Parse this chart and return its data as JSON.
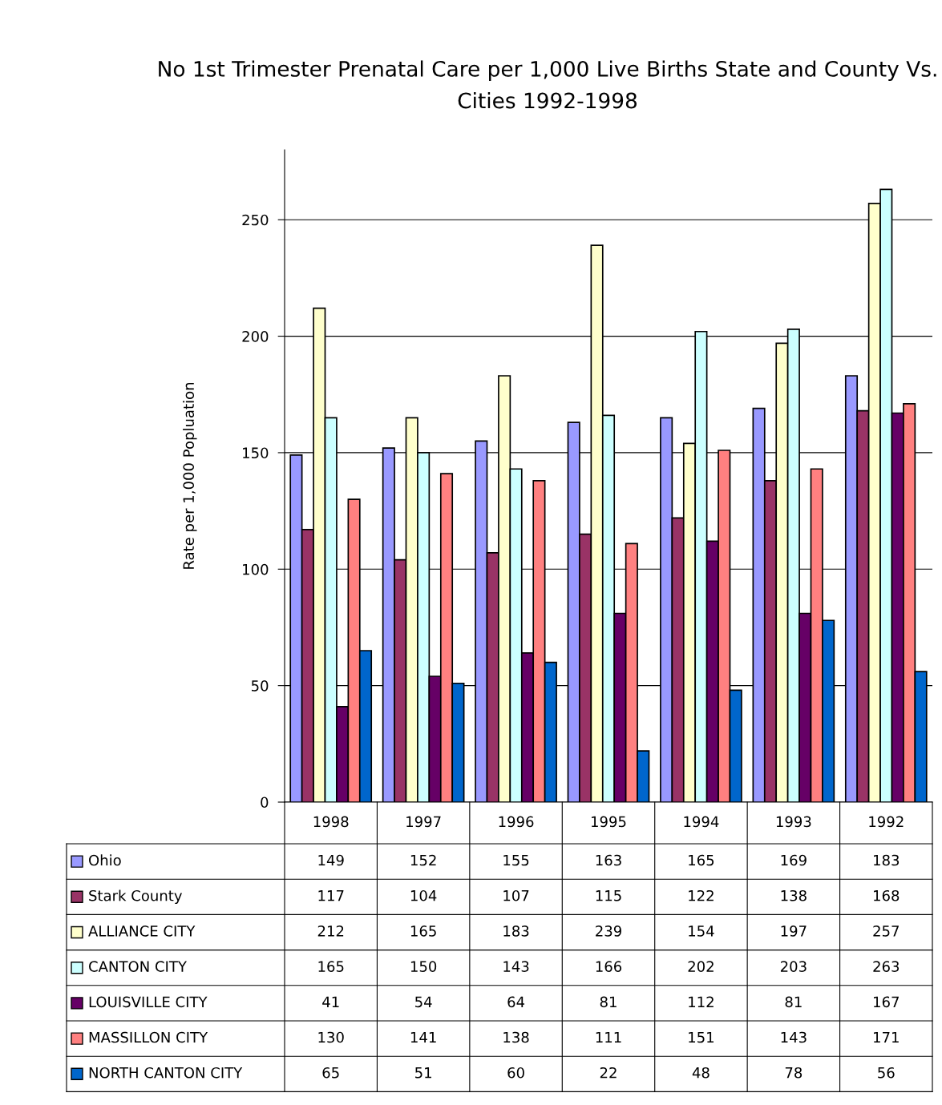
{
  "chart_data": {
    "type": "bar",
    "title": "No 1st Trimester Prenatal Care per 1,000 Live Births State and County Vs. Cities 1992-1998",
    "ylabel": "Rate per 1,000 Popluation",
    "categories": [
      "1998",
      "1997",
      "1996",
      "1995",
      "1994",
      "1993",
      "1992"
    ],
    "series": [
      {
        "name": "Ohio",
        "color": "#9999ff",
        "values": [
          149,
          152,
          155,
          163,
          165,
          169,
          183
        ]
      },
      {
        "name": "Stark County",
        "color": "#993366",
        "values": [
          117,
          104,
          107,
          115,
          122,
          138,
          168
        ]
      },
      {
        "name": "ALLIANCE CITY",
        "color": "#ffffcc",
        "values": [
          212,
          165,
          183,
          239,
          154,
          197,
          257
        ]
      },
      {
        "name": "CANTON CITY",
        "color": "#ccffff",
        "values": [
          165,
          150,
          143,
          166,
          202,
          203,
          263
        ]
      },
      {
        "name": "LOUISVILLE CITY",
        "color": "#660066",
        "values": [
          41,
          54,
          64,
          81,
          112,
          81,
          167
        ]
      },
      {
        "name": "MASSILLON CITY",
        "color": "#ff8080",
        "values": [
          130,
          141,
          138,
          111,
          151,
          143,
          171
        ]
      },
      {
        "name": "NORTH CANTON CITY",
        "color": "#0066cc",
        "values": [
          65,
          51,
          60,
          22,
          48,
          78,
          56
        ]
      }
    ],
    "ylim": [
      0,
      280
    ],
    "yticks": [
      0,
      50,
      100,
      150,
      200,
      250
    ],
    "grid": "y",
    "legend": "bottom",
    "data_labels": true
  }
}
